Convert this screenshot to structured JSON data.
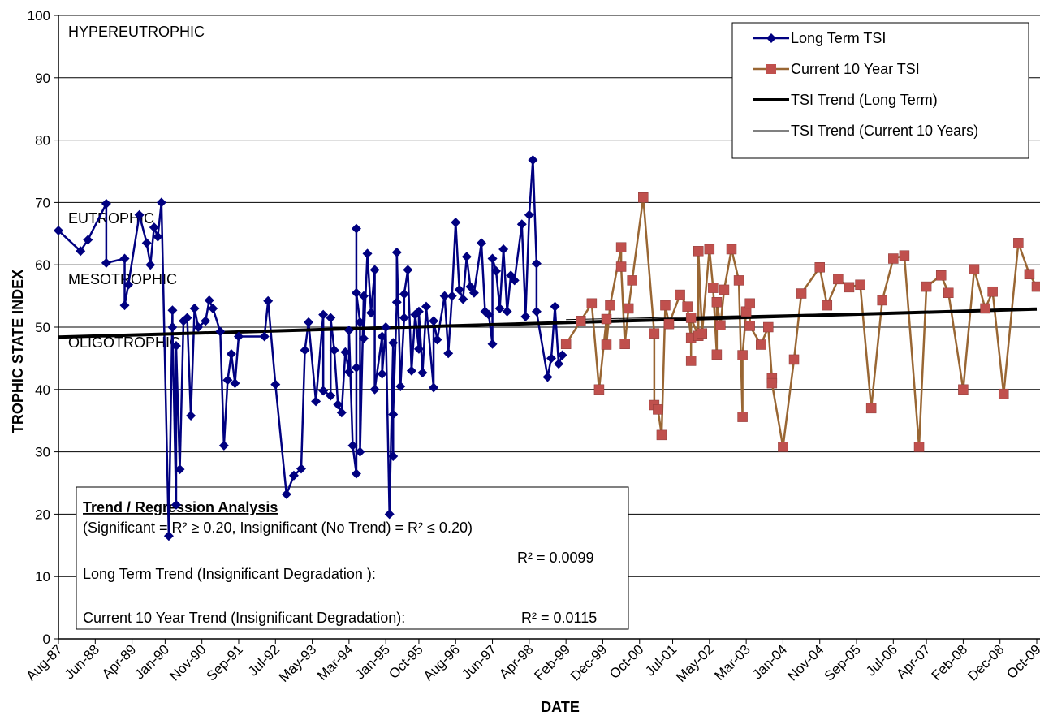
{
  "chart_data": {
    "type": "line",
    "x_label": "DATE",
    "y_label": "TROPHIC STATE INDEX",
    "ylim": [
      0,
      100
    ],
    "yticks": [
      0,
      10,
      20,
      30,
      40,
      50,
      60,
      70,
      80,
      90,
      100
    ],
    "xlim": [
      "1987-08",
      "2009-10"
    ],
    "xticks": [
      {
        "value": "1987-08",
        "label": "Aug-87"
      },
      {
        "value": "1988-06",
        "label": "Jun-88"
      },
      {
        "value": "1989-04",
        "label": "Apr-89"
      },
      {
        "value": "1990-01",
        "label": "Jan-90"
      },
      {
        "value": "1990-11",
        "label": "Nov-90"
      },
      {
        "value": "1991-09",
        "label": "Sep-91"
      },
      {
        "value": "1992-07",
        "label": "Jul-92"
      },
      {
        "value": "1993-05",
        "label": "May-93"
      },
      {
        "value": "1994-03",
        "label": "Mar-94"
      },
      {
        "value": "1995-01",
        "label": "Jan-95"
      },
      {
        "value": "1995-10",
        "label": "Oct-95"
      },
      {
        "value": "1996-08",
        "label": "Aug-96"
      },
      {
        "value": "1997-06",
        "label": "Jun-97"
      },
      {
        "value": "1998-04",
        "label": "Apr-98"
      },
      {
        "value": "1999-02",
        "label": "Feb-99"
      },
      {
        "value": "1999-12",
        "label": "Dec-99"
      },
      {
        "value": "2000-10",
        "label": "Oct-00"
      },
      {
        "value": "2001-07",
        "label": "Jul-01"
      },
      {
        "value": "2002-05",
        "label": "May-02"
      },
      {
        "value": "2003-03",
        "label": "Mar-03"
      },
      {
        "value": "2004-01",
        "label": "Jan-04"
      },
      {
        "value": "2004-11",
        "label": "Nov-04"
      },
      {
        "value": "2005-09",
        "label": "Sep-05"
      },
      {
        "value": "2006-07",
        "label": "Jul-06"
      },
      {
        "value": "2007-04",
        "label": "Apr-07"
      },
      {
        "value": "2008-02",
        "label": "Feb-08"
      },
      {
        "value": "2008-12",
        "label": "Dec-08"
      },
      {
        "value": "2009-10",
        "label": "Oct-09"
      }
    ],
    "grid": true,
    "legend": "top-right",
    "series": [
      {
        "name": "Long Term TSI",
        "color": "#000080",
        "marker": "diamond",
        "marker_color": "#000080",
        "line_width": 2.5,
        "x": [
          "1987-08",
          "1988-02",
          "1988-04",
          "1988-09",
          "1988-09",
          "1989-02",
          "1989-02",
          "1989-03",
          "1989-06",
          "1989-08",
          "1989-09",
          "1989-10",
          "1989-11",
          "1989-12",
          "1990-02",
          "1990-03",
          "1990-03",
          "1990-04",
          "1990-04",
          "1990-05",
          "1990-06",
          "1990-07",
          "1990-08",
          "1990-09",
          "1990-10",
          "1990-12",
          "1991-01",
          "1991-02",
          "1991-04",
          "1991-05",
          "1991-06",
          "1991-07",
          "1991-08",
          "1991-09",
          "1992-04",
          "1992-05",
          "1992-07",
          "1992-10",
          "1992-12",
          "1993-02",
          "1993-03",
          "1993-04",
          "1993-06",
          "1993-08",
          "1993-08",
          "1993-10",
          "1993-10",
          "1993-11",
          "1993-12",
          "1994-01",
          "1994-02",
          "1994-03",
          "1994-03",
          "1994-04",
          "1994-05",
          "1994-05",
          "1994-05",
          "1994-05",
          "1994-06",
          "1994-06",
          "1994-07",
          "1994-07",
          "1994-08",
          "1994-09",
          "1994-10",
          "1994-10",
          "1994-12",
          "1994-12",
          "1995-01",
          "1995-02",
          "1995-03",
          "1995-03",
          "1995-03",
          "1995-04",
          "1995-04",
          "1995-05",
          "1995-06",
          "1995-06",
          "1995-07",
          "1995-08",
          "1995-09",
          "1995-10",
          "1995-10",
          "1995-11",
          "1995-12",
          "1996-02",
          "1996-02",
          "1996-03",
          "1996-05",
          "1996-06",
          "1996-07",
          "1996-08",
          "1996-09",
          "1996-10",
          "1996-11",
          "1996-12",
          "1997-01",
          "1997-03",
          "1997-04",
          "1997-05",
          "1997-06",
          "1997-06",
          "1997-07",
          "1997-08",
          "1997-09",
          "1997-10",
          "1997-11",
          "1997-12",
          "1998-02",
          "1998-03",
          "1998-04",
          "1998-05",
          "1998-06",
          "1998-06",
          "1998-09",
          "1998-10",
          "1998-11",
          "1998-12",
          "1999-01"
        ],
        "values": [
          65.5,
          62.2,
          64,
          69.8,
          60.3,
          61,
          53.5,
          56.8,
          68,
          63.5,
          60,
          66,
          64.5,
          70,
          16.5,
          52.7,
          50,
          21.5,
          47,
          27.2,
          51,
          51.5,
          35.8,
          53,
          50,
          51,
          54.3,
          53,
          49.3,
          31,
          41.5,
          45.7,
          41,
          48.5,
          48.5,
          54.2,
          40.8,
          23.2,
          26.2,
          27.3,
          46.3,
          50.8,
          38.1,
          52,
          39.8,
          39,
          51.5,
          46.3,
          37.6,
          36.3,
          46,
          42.8,
          49.5,
          31,
          26.5,
          43.5,
          65.8,
          55.5,
          50.8,
          30,
          55,
          48.2,
          61.8,
          52.3,
          59.2,
          40,
          48.5,
          42.5,
          50,
          20,
          47.5,
          29.3,
          36,
          54,
          62,
          40.5,
          51.5,
          55.3,
          59.2,
          43,
          52,
          46.5,
          52.5,
          42.7,
          53.3,
          40.3,
          51,
          48,
          55,
          45.8,
          55,
          66.8,
          56,
          54.5,
          61.3,
          56.5,
          55.5,
          63.5,
          52.5,
          52,
          47.3,
          61,
          59,
          53,
          62.5,
          52.5,
          58.3,
          57.5,
          66.5,
          51.7,
          68,
          76.8,
          60.2,
          52.5,
          42,
          45,
          53.3,
          44.1,
          45.5
        ]
      },
      {
        "name": "Current 10 Year TSI",
        "color": "#996633",
        "marker": "square",
        "marker_color": "#c0504d",
        "line_width": 2.5,
        "x": [
          "1999-02",
          "1999-06",
          "1999-09",
          "1999-11",
          "2000-01",
          "2000-01",
          "2000-02",
          "2000-05",
          "2000-05",
          "2000-06",
          "2000-07",
          "2000-08",
          "2000-11",
          "2001-02",
          "2001-02",
          "2001-03",
          "2001-04",
          "2001-05",
          "2001-06",
          "2001-09",
          "2001-11",
          "2001-12",
          "2001-12",
          "2001-12",
          "2002-02",
          "2002-02",
          "2002-03",
          "2002-05",
          "2002-06",
          "2002-07",
          "2002-07",
          "2002-08",
          "2002-09",
          "2002-11",
          "2003-01",
          "2003-02",
          "2003-02",
          "2003-03",
          "2003-04",
          "2003-04",
          "2003-07",
          "2003-09",
          "2003-10",
          "2003-10",
          "2004-01",
          "2004-04",
          "2004-06",
          "2004-11",
          "2005-01",
          "2005-04",
          "2005-07",
          "2005-10",
          "2006-01",
          "2006-04",
          "2006-07",
          "2006-10",
          "2007-02",
          "2007-04",
          "2007-08",
          "2007-10",
          "2008-02",
          "2008-05",
          "2008-08",
          "2008-10",
          "2009-01",
          "2009-05",
          "2009-08",
          "2009-10"
        ],
        "values": [
          47.3,
          51,
          53.8,
          40,
          51.3,
          47.2,
          53.5,
          62.8,
          59.7,
          47.3,
          53,
          57.5,
          70.8,
          49,
          37.5,
          36.8,
          32.7,
          53.5,
          50.5,
          55.2,
          53.3,
          48.3,
          44.6,
          51.5,
          48.6,
          62.2,
          49,
          62.5,
          56.3,
          45.6,
          54,
          50.3,
          56,
          62.5,
          57.5,
          35.6,
          45.5,
          52.5,
          53.8,
          50.2,
          47.2,
          50,
          41.8,
          41,
          30.8,
          44.8,
          55.4,
          59.6,
          53.5,
          57.7,
          56.4,
          56.8,
          37,
          54.3,
          61,
          61.5,
          30.8,
          56.5,
          58.3,
          55.5,
          40,
          59.3,
          53,
          55.7,
          39.3,
          63.5,
          58.5,
          56.5
        ]
      },
      {
        "name": "TSI Trend (Long Term)",
        "color": "#000000",
        "marker": "none",
        "line_width": 4,
        "x": [
          "1987-08",
          "2009-10"
        ],
        "values": [
          48.4,
          52.9
        ]
      },
      {
        "name": "TSI Trend (Current 10 Years)",
        "color": "#000000",
        "marker": "none",
        "line_width": 1,
        "x": [
          "1999-02",
          "2009-10"
        ],
        "values": [
          51.2,
          52.9
        ]
      }
    ],
    "zone_labels": [
      {
        "text": "HYPEREUTROPHIC"
      },
      {
        "text": "EUTROPHIC"
      },
      {
        "text": "MESOTROPHIC"
      },
      {
        "text": "OLIGOTROPHIC"
      }
    ],
    "regression_box": {
      "title": "Trend / Regression Analysis",
      "criteria": "(Significant = R² ≥ 0.20, Insignificant (No Trend) = R² ≤ 0.20)",
      "rows": [
        {
          "label": "Long Term Trend (Insignificant Degradation ):",
          "r2": "R² = 0.0099"
        },
        {
          "label": "Current 10 Year Trend (Insignificant Degradation):",
          "r2": "R² = 0.0115"
        }
      ]
    }
  }
}
